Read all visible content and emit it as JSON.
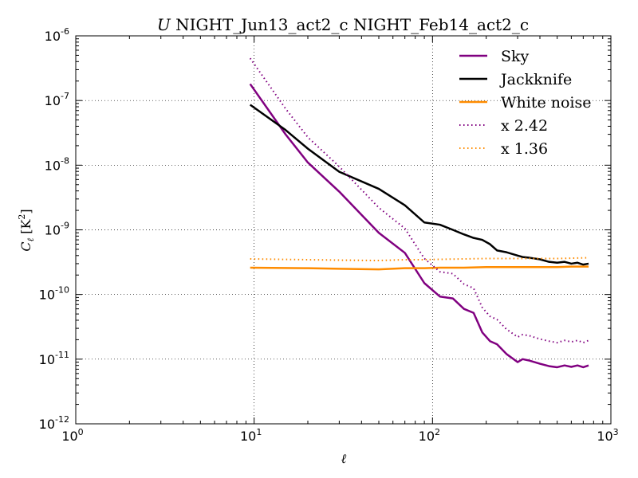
{
  "chart_data": {
    "type": "line",
    "title_italic": "U",
    "title": " NIGHT_Jun13_act2_c NIGHT_Feb14_act2_c",
    "xlabel": "ℓ",
    "ylabel_main": "C",
    "ylabel_sub": "ℓ",
    "ylabel_unit": "[K",
    "ylabel_unit_exp": "2",
    "ylabel_unit_close": "]",
    "xscale": "log",
    "yscale": "log",
    "xlim": [
      1,
      1000
    ],
    "ylim": [
      1e-12,
      1e-06
    ],
    "grid": true,
    "legend_position": "top-right",
    "x_ticks": [
      {
        "base": "10",
        "exp": "0",
        "value": 1
      },
      {
        "base": "10",
        "exp": "1",
        "value": 10
      },
      {
        "base": "10",
        "exp": "2",
        "value": 100
      },
      {
        "base": "10",
        "exp": "3",
        "value": 1000
      }
    ],
    "y_ticks": [
      {
        "base": "10",
        "exp": "-12",
        "value": 1e-12
      },
      {
        "base": "10",
        "exp": "-11",
        "value": 1e-11
      },
      {
        "base": "10",
        "exp": "-10",
        "value": 1e-10
      },
      {
        "base": "10",
        "exp": "-9",
        "value": 1e-09
      },
      {
        "base": "10",
        "exp": "-8",
        "value": 1e-08
      },
      {
        "base": "10",
        "exp": "-7",
        "value": 1e-07
      },
      {
        "base": "10",
        "exp": "-6",
        "value": 1e-06
      }
    ],
    "series": [
      {
        "name": "Sky",
        "color": "#800080",
        "style": "solid",
        "x": [
          9.5,
          15,
          20,
          30,
          50,
          70,
          90,
          110,
          130,
          150,
          170,
          190,
          210,
          230,
          260,
          300,
          320,
          350,
          400,
          450,
          500,
          550,
          600,
          650,
          700,
          750
        ],
        "y": [
          1.8e-07,
          3e-08,
          1.1e-08,
          3.9e-09,
          9e-10,
          4.4e-10,
          1.5e-10,
          9.3e-11,
          8.7e-11,
          6e-11,
          5.2e-11,
          2.6e-11,
          1.9e-11,
          1.7e-11,
          1.2e-11,
          9e-12,
          1e-11,
          9.5e-12,
          8.5e-12,
          7.8e-12,
          7.5e-12,
          8e-12,
          7.6e-12,
          8e-12,
          7.5e-12,
          8e-12
        ]
      },
      {
        "name": "Jackknife",
        "color": "#000000",
        "style": "solid",
        "x": [
          9.5,
          15,
          20,
          30,
          50,
          70,
          90,
          110,
          130,
          150,
          170,
          190,
          210,
          230,
          260,
          300,
          320,
          350,
          400,
          450,
          500,
          550,
          600,
          650,
          700,
          750
        ],
        "y": [
          8.6e-08,
          3.5e-08,
          1.8e-08,
          7.9e-09,
          4.3e-09,
          2.4e-09,
          1.3e-09,
          1.2e-09,
          1e-09,
          8.5e-10,
          7.5e-10,
          7e-10,
          6e-10,
          4.8e-10,
          4.5e-10,
          4e-10,
          3.8e-10,
          3.7e-10,
          3.5e-10,
          3.2e-10,
          3.1e-10,
          3.2e-10,
          3e-10,
          3.1e-10,
          2.9e-10,
          3e-10
        ]
      },
      {
        "name": "White noise",
        "color": "#ff8c00",
        "style": "solid",
        "x": [
          9.5,
          20,
          30,
          50,
          70,
          90,
          110,
          150,
          200,
          300,
          400,
          500,
          600,
          750
        ],
        "y": [
          2.6e-10,
          2.55e-10,
          2.5e-10,
          2.45e-10,
          2.55e-10,
          2.55e-10,
          2.6e-10,
          2.6e-10,
          2.65e-10,
          2.65e-10,
          2.65e-10,
          2.65e-10,
          2.7e-10,
          2.7e-10
        ]
      },
      {
        "name": "x 2.42",
        "color": "#800080",
        "style": "dotted",
        "x": [
          9.5,
          15,
          20,
          30,
          50,
          70,
          90,
          110,
          130,
          150,
          170,
          190,
          210,
          230,
          260,
          300,
          320,
          350,
          400,
          450,
          500,
          550,
          600,
          650,
          700,
          750
        ],
        "y": [
          4.5e-07,
          7.5e-08,
          2.7e-08,
          9.5e-09,
          2.2e-09,
          1.05e-09,
          3.6e-10,
          2.25e-10,
          2.1e-10,
          1.45e-10,
          1.25e-10,
          6.3e-11,
          4.6e-11,
          4.1e-11,
          2.9e-11,
          2.2e-11,
          2.4e-11,
          2.3e-11,
          2.05e-11,
          1.9e-11,
          1.8e-11,
          1.95e-11,
          1.85e-11,
          1.95e-11,
          1.8e-11,
          1.95e-11
        ]
      },
      {
        "name": "x 1.36",
        "color": "#ff8c00",
        "style": "dotted",
        "x": [
          9.5,
          20,
          30,
          50,
          70,
          90,
          110,
          150,
          200,
          300,
          400,
          500,
          600,
          750
        ],
        "y": [
          3.55e-10,
          3.45e-10,
          3.4e-10,
          3.35e-10,
          3.45e-10,
          3.45e-10,
          3.5e-10,
          3.55e-10,
          3.6e-10,
          3.6e-10,
          3.6e-10,
          3.6e-10,
          3.65e-10,
          3.7e-10
        ]
      }
    ]
  }
}
